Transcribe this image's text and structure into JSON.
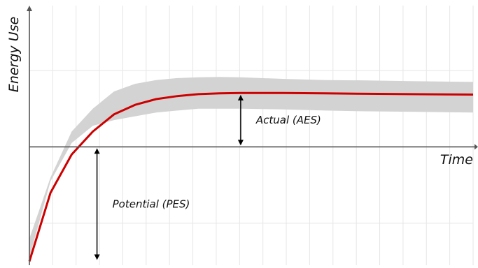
{
  "chart_data": {
    "type": "line",
    "title": "",
    "xlabel": "Time",
    "ylabel": "Energy Use",
    "xlim": [
      0,
      21
    ],
    "ylim": [
      -3.1,
      3.7
    ],
    "grid": true,
    "legend": "none",
    "series": [
      {
        "name": "",
        "x": [
          0,
          1,
          2,
          3,
          4,
          5,
          6,
          7,
          8,
          9,
          10,
          12,
          14,
          16,
          18,
          21
        ],
        "values": [
          -3.0,
          -1.2,
          -0.2,
          0.4,
          0.85,
          1.1,
          1.25,
          1.33,
          1.38,
          1.4,
          1.41,
          1.41,
          1.4,
          1.39,
          1.38,
          1.37
        ]
      }
    ],
    "band": {
      "x": [
        0,
        1,
        2,
        3,
        4,
        5,
        6,
        7,
        8,
        9,
        10,
        12,
        14,
        16,
        18,
        21
      ],
      "lower": [
        -2.9,
        -0.9,
        0.1,
        0.55,
        0.7,
        0.8,
        0.9,
        0.95,
        1.0,
        1.0,
        1.0,
        0.98,
        0.95,
        0.93,
        0.92,
        0.9
      ],
      "upper": [
        -2.4,
        -0.8,
        0.4,
        1.0,
        1.45,
        1.65,
        1.75,
        1.8,
        1.82,
        1.83,
        1.82,
        1.78,
        1.75,
        1.74,
        1.72,
        1.7
      ]
    },
    "annotations": [
      {
        "id": "aes",
        "text": "Actual (AES)",
        "x": 10,
        "from": 0,
        "to": 1.4
      },
      {
        "id": "pes",
        "text": "Potential (PES)",
        "x": 3.2,
        "from": -3.0,
        "to": 0
      }
    ],
    "colors": {
      "line": "#cc0000",
      "band": "#d3d3d3",
      "axis": "#555555",
      "grid": "#e6e6e6"
    }
  }
}
